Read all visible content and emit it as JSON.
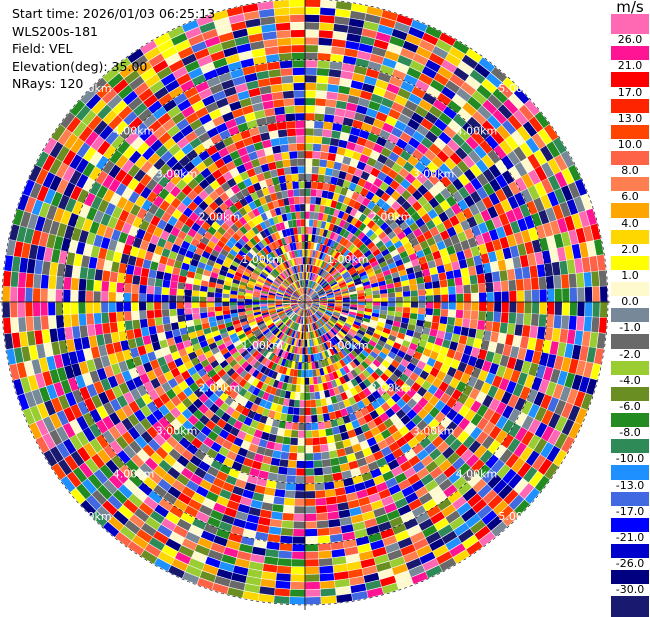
{
  "header": {
    "start_time": "Start time: 2026/01/03 06:25:13",
    "instrument": "WLS200s-181",
    "field": "Field: VEL",
    "elevation": "Elevation(deg): 35.00",
    "nrays": "NRays: 120"
  },
  "colorbar": {
    "unit": "m/s",
    "levels": [
      {
        "label": "26.0",
        "color": "#ff1493"
      },
      {
        "label": "21.0",
        "color": "#ff0000"
      },
      {
        "label": "17.0",
        "color": "#ff2400"
      },
      {
        "label": "13.0",
        "color": "#ff4500"
      },
      {
        "label": "10.0",
        "color": "#ff6347"
      },
      {
        "label": "8.0",
        "color": "#ff7f50"
      },
      {
        "label": "6.0",
        "color": "#ffa500"
      },
      {
        "label": "4.0",
        "color": "#ffd700"
      },
      {
        "label": "2.0",
        "color": "#ffff00"
      },
      {
        "label": "1.0",
        "color": "#fffacd"
      },
      {
        "label": "0.0",
        "color": "#778899"
      },
      {
        "label": "-1.0",
        "color": "#696969"
      },
      {
        "label": "-2.0",
        "color": "#9acd32"
      },
      {
        "label": "-4.0",
        "color": "#6b8e23"
      },
      {
        "label": "-6.0",
        "color": "#228b22"
      },
      {
        "label": "-8.0",
        "color": "#2e8b57"
      },
      {
        "label": "-10.0",
        "color": "#1e90ff"
      },
      {
        "label": "-13.0",
        "color": "#4169e1"
      },
      {
        "label": "-17.0",
        "color": "#0000ff"
      },
      {
        "label": "-21.0",
        "color": "#0000cd"
      },
      {
        "label": "-26.0",
        "color": "#000080"
      },
      {
        "label": "-30.0",
        "color": "#191970"
      }
    ],
    "top_color": "#ff69b4"
  },
  "ppi": {
    "nrays": 120,
    "max_range_km": 5.0,
    "range_ring_labels": [
      "1.00km",
      "2.00km",
      "3.00km",
      "4.00km",
      "5.00km"
    ]
  }
}
